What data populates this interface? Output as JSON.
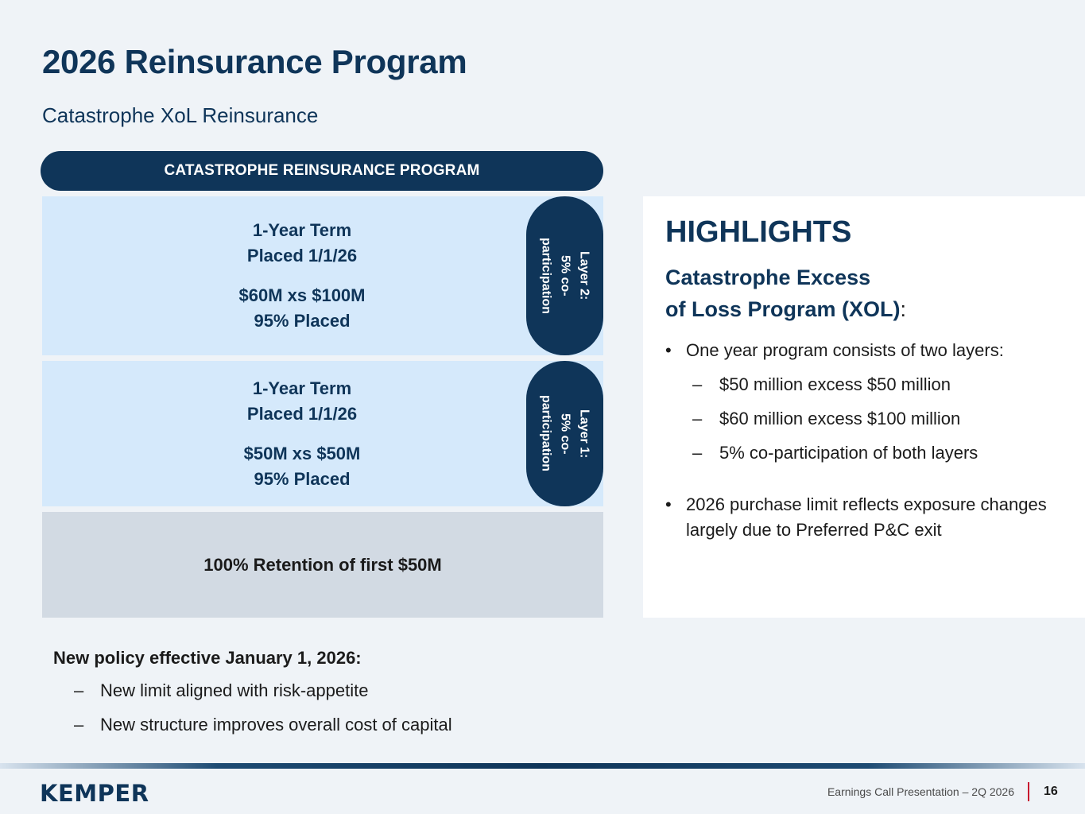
{
  "page": {
    "title": "2026 Reinsurance Program",
    "subtitle": "Catastrophe XoL Reinsurance"
  },
  "program": {
    "header": "CATASTROPHE REINSURANCE PROGRAM",
    "layer2": {
      "term": "1-Year Term",
      "placed_date": "Placed 1/1/26",
      "limit": "$60M xs $100M",
      "placed_pct": "95% Placed",
      "pill": "Layer 2:\n5% co-\nparticipation"
    },
    "layer1": {
      "term": "1-Year Term",
      "placed_date": "Placed 1/1/26",
      "limit": "$50M xs $50M",
      "placed_pct": "95% Placed",
      "pill": "Layer 1:\n5% co-\nparticipation"
    },
    "retention": "100% Retention of first $50M"
  },
  "highlights": {
    "title": "HIGHLIGHTS",
    "subtitle_line1": "Catastrophe Excess",
    "subtitle_line2": "of Loss Program (XOL)",
    "subtitle_colon": ":",
    "bullet_marker": "•",
    "dash_marker": "–",
    "items": [
      {
        "text": "One year program consists of two layers:",
        "subitems": [
          "$50 million excess $50 million",
          "$60 million excess $100 million",
          "5% co-participation of both layers"
        ]
      },
      {
        "text": "2026 purchase limit reflects exposure changes largely due to Preferred P&C exit"
      }
    ]
  },
  "policy": {
    "heading": "New policy effective January 1, 2026:",
    "dash_marker": "–",
    "items": [
      "New limit aligned with risk-appetite",
      "New structure improves overall cost of capital"
    ]
  },
  "footer": {
    "logo": "KEMPER",
    "text": "Earnings Call Presentation – 2Q 2026",
    "page_number": "16"
  }
}
